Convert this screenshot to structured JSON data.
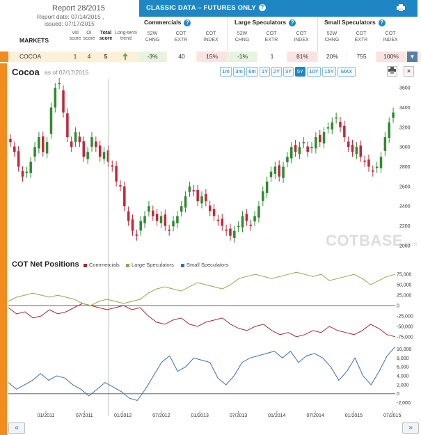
{
  "report": {
    "title": "Report 28/2015",
    "date_line": "Report date: 07/14/2015 ,",
    "issued_line": "issued: 07/17/2015"
  },
  "markets_label": "MARKETS",
  "score_headers": {
    "vol": [
      "Vol",
      "score"
    ],
    "oi": [
      "OI",
      "score"
    ],
    "total": [
      "Total",
      "score"
    ],
    "trend": [
      "Long-term",
      "trend"
    ]
  },
  "classic_title": "CLASSIC DATA – FUTURES ONLY",
  "groups": [
    {
      "name": "Commercials"
    },
    {
      "name": "Large Speculators"
    },
    {
      "name": "Small Speculators"
    }
  ],
  "sub_headers": [
    [
      "52W",
      "CHNG"
    ],
    [
      "COT",
      "EXTR"
    ],
    [
      "COT",
      "INDEX"
    ]
  ],
  "row": {
    "market": "COCOA",
    "vol_score": "1",
    "oi_score": "4",
    "total_score": "5",
    "trend_icon": "leaf-icon",
    "commercials": {
      "chng": "-3%",
      "extr": "40",
      "index": "15%"
    },
    "large_specs": {
      "chng": "-1%",
      "extr": "1",
      "index": "81%"
    },
    "small_specs": {
      "chng": "20%",
      "extr": "755",
      "index": "100%"
    }
  },
  "chart": {
    "name": "Cocoa",
    "as_of": "as of 07/17/2015",
    "range_buttons": [
      "1m",
      "3m",
      "6m",
      "1Y",
      "2Y",
      "3Y",
      "5Y",
      "10Y",
      "15Y",
      "MAX"
    ],
    "active_range": "5Y",
    "net_title": "COT Net Positions",
    "watermark": "COTBASE",
    "watermark_suffix": ".com"
  },
  "colors": {
    "accent": "#1f86c6",
    "commercials": "#a52a2a",
    "large_specs": "#8aac4c",
    "small_specs": "#3a6db5",
    "candle_up": "#2e8b2e",
    "candle_down": "#c0283a",
    "side_bar": "#f28c1f"
  },
  "chart_data": [
    {
      "type": "candlestick",
      "title": "Cocoa",
      "y_ticks": [
        2000,
        2200,
        2400,
        2600,
        2800,
        3000,
        3200,
        3400,
        3600
      ],
      "ylim": [
        1950,
        3700
      ],
      "x_ticks": [
        "01/2011",
        "07/2011",
        "01/2012",
        "07/2012",
        "01/2013",
        "07/2013",
        "01/2014",
        "07/2014",
        "01/2015",
        "07/2015"
      ],
      "weekly_close": [
        3050,
        2950,
        2800,
        2700,
        2750,
        2850,
        3000,
        3100,
        2950,
        3050,
        3400,
        3600,
        3650,
        3350,
        3100,
        3000,
        3150,
        3050,
        2900,
        2950,
        3100,
        3000,
        2900,
        2950,
        2850,
        2800,
        2650,
        2600,
        2400,
        2250,
        2150,
        2100,
        2250,
        2300,
        2400,
        2300,
        2250,
        2300,
        2200,
        2150,
        2250,
        2300,
        2400,
        2500,
        2600,
        2550,
        2450,
        2500,
        2450,
        2350,
        2300,
        2250,
        2200,
        2150,
        2100,
        2150,
        2200,
        2300,
        2250,
        2200,
        2300,
        2400,
        2550,
        2650,
        2750,
        2800,
        2700,
        2800,
        2900,
        3000,
        2950,
        3000,
        3050,
        2950,
        3000,
        3100,
        3050,
        3150,
        3200,
        3250,
        3300,
        3200,
        3100,
        3000,
        2950,
        3000,
        2900,
        2850,
        2800,
        2750,
        2800,
        2900,
        3100,
        3250,
        3350
      ],
      "annotations": []
    },
    {
      "type": "line",
      "title": "COT Net Positions",
      "y_ticks": [
        -75000,
        -50000,
        -25000,
        0,
        25000,
        50000,
        75000
      ],
      "ylim": [
        -82000,
        82000
      ],
      "series": [
        {
          "name": "Commercials",
          "values": [
            -5000,
            -20000,
            -15000,
            -30000,
            -25000,
            -10000,
            -20000,
            -15000,
            -5000,
            5000,
            0,
            -5000,
            -10000,
            -5000,
            0,
            -10000,
            -5000,
            -25000,
            -40000,
            -45000,
            -35000,
            -30000,
            -45000,
            -50000,
            -40000,
            -35000,
            -30000,
            -45000,
            -55000,
            -60000,
            -50000,
            -45000,
            -60000,
            -70000,
            -65000,
            -75000,
            -70000,
            -60000,
            -65000,
            -50000,
            -60000,
            -65000,
            -70000,
            -60000,
            -45000,
            -55000,
            -70000,
            -75000
          ]
        },
        {
          "name": "Large Speculators",
          "values": [
            10000,
            20000,
            25000,
            30000,
            25000,
            20000,
            25000,
            20000,
            15000,
            5000,
            0,
            10000,
            15000,
            10000,
            5000,
            10000,
            15000,
            30000,
            40000,
            45000,
            40000,
            35000,
            45000,
            55000,
            50000,
            45000,
            40000,
            50000,
            65000,
            70000,
            75000,
            70000,
            65000,
            70000,
            75000,
            80000,
            75000,
            70000,
            75000,
            60000,
            65000,
            70000,
            75000,
            65000,
            50000,
            60000,
            70000,
            75000
          ]
        }
      ]
    },
    {
      "type": "line",
      "title": "",
      "y_ticks": [
        -2000,
        0,
        2000,
        4000,
        6000,
        8000,
        10000
      ],
      "ylim": [
        -3000,
        11000
      ],
      "series": [
        {
          "name": "Small Speculators",
          "values": [
            2500,
            1000,
            2000,
            3000,
            4500,
            3000,
            4000,
            3500,
            2000,
            1000,
            -500,
            1000,
            2500,
            1500,
            500,
            -1000,
            -1500,
            1000,
            4000,
            7000,
            8500,
            5000,
            6000,
            8000,
            7500,
            7000,
            3500,
            2000,
            4000,
            7000,
            8000,
            8500,
            9000,
            9500,
            8000,
            9500,
            7000,
            8500,
            9000,
            8000,
            6000,
            3000,
            5000,
            8000,
            4000,
            2000,
            5000,
            8500,
            10500
          ]
        }
      ]
    }
  ]
}
